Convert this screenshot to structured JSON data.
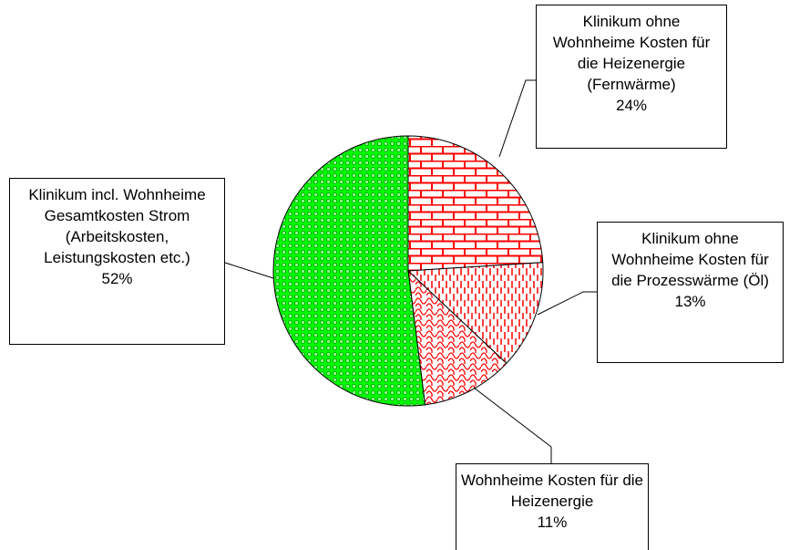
{
  "chart_data": {
    "type": "pie",
    "categories": [
      "Klinikum ohne Wohnheime Kosten für die Heizenergie (Fernwärme)",
      "Klinikum ohne Wohnheime Kosten für die Prozesswärme (Öl)",
      "Wohnheime Kosten für die Heizenergie",
      "Klinikum incl. Wohnheime Gesamtkosten Strom (Arbeitskosten, Leistungskosten etc.)"
    ],
    "values": [
      24,
      13,
      11,
      52
    ],
    "value_labels": [
      "24%",
      "13%",
      "11%",
      "52%"
    ],
    "colors": [
      "#ff0000",
      "#ff0000",
      "#ff0000",
      "#00ff00"
    ]
  }
}
